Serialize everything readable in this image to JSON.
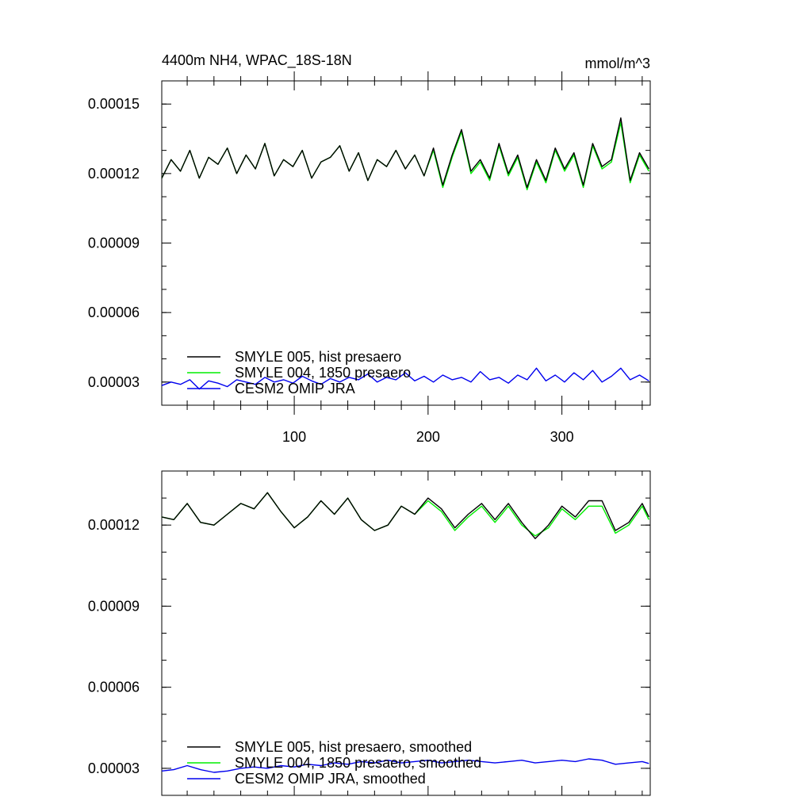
{
  "figure": {
    "title_left": "4400m NH4, WPAC_18S-18N",
    "title_right": "mmol/m^3"
  },
  "colors": {
    "hist": "#000000",
    "presaero_1850": "#00ee00",
    "omip": "#0000ee"
  },
  "chart_data": [
    {
      "type": "line",
      "x_range": [
        1,
        366
      ],
      "xticks": [
        100,
        200,
        300
      ],
      "xtick_labels": [
        "100",
        "200",
        "300"
      ],
      "ylim": [
        2e-05,
        0.00016
      ],
      "yticks": [
        3e-05,
        6e-05,
        9e-05,
        0.00012,
        0.00015
      ],
      "ytick_labels": [
        "0.00003",
        "0.00006",
        "0.00009",
        "0.00012",
        "0.00015"
      ],
      "legend_position": "bottom-left",
      "series": [
        {
          "name": "SMYLE 005, hist presaero",
          "color_key": "hist",
          "x": [
            1,
            8,
            15,
            22,
            29,
            36,
            43,
            50,
            57,
            64,
            71,
            78,
            85,
            92,
            99,
            106,
            113,
            120,
            127,
            134,
            141,
            148,
            155,
            162,
            169,
            176,
            183,
            190,
            197,
            204,
            211,
            218,
            225,
            232,
            239,
            246,
            253,
            260,
            267,
            274,
            281,
            288,
            295,
            302,
            309,
            316,
            323,
            330,
            337,
            344,
            351,
            358,
            365
          ],
          "values": [
            0.000118,
            0.000126,
            0.000121,
            0.00013,
            0.000118,
            0.000127,
            0.000124,
            0.000131,
            0.00012,
            0.000128,
            0.000122,
            0.000133,
            0.000119,
            0.000126,
            0.000123,
            0.00013,
            0.000118,
            0.000125,
            0.000127,
            0.000132,
            0.000121,
            0.000129,
            0.000117,
            0.000126,
            0.000123,
            0.00013,
            0.000122,
            0.000128,
            0.000119,
            0.000131,
            0.000115,
            0.000128,
            0.000139,
            0.000121,
            0.000126,
            0.000118,
            0.000133,
            0.00012,
            0.000128,
            0.000114,
            0.000126,
            0.000117,
            0.000131,
            0.000122,
            0.000129,
            0.000115,
            0.000133,
            0.000123,
            0.000126,
            0.000144,
            0.000117,
            0.000129,
            0.000122
          ]
        },
        {
          "name": "SMYLE 004, 1850 presaero",
          "color_key": "presaero_1850",
          "x": [
            1,
            8,
            15,
            22,
            29,
            36,
            43,
            50,
            57,
            64,
            71,
            78,
            85,
            92,
            99,
            106,
            113,
            120,
            127,
            134,
            141,
            148,
            155,
            162,
            169,
            176,
            183,
            190,
            197,
            204,
            211,
            218,
            225,
            232,
            239,
            246,
            253,
            260,
            267,
            274,
            281,
            288,
            295,
            302,
            309,
            316,
            323,
            330,
            337,
            344,
            351,
            358,
            365
          ],
          "values": [
            0.000118,
            0.000126,
            0.000121,
            0.00013,
            0.000118,
            0.000127,
            0.000124,
            0.000131,
            0.00012,
            0.000128,
            0.000122,
            0.000133,
            0.000119,
            0.000126,
            0.000123,
            0.00013,
            0.000118,
            0.000125,
            0.000127,
            0.000132,
            0.000121,
            0.000129,
            0.000117,
            0.000126,
            0.000123,
            0.00013,
            0.000122,
            0.000128,
            0.000119,
            0.00013,
            0.000114,
            0.000127,
            0.000138,
            0.00012,
            0.000125,
            0.000117,
            0.000132,
            0.000119,
            0.000127,
            0.000113,
            0.000125,
            0.000116,
            0.00013,
            0.000121,
            0.000128,
            0.000114,
            0.000132,
            0.000122,
            0.000125,
            0.000142,
            0.000116,
            0.000128,
            0.000121
          ]
        },
        {
          "name": "CESM2 OMIP JRA",
          "color_key": "omip",
          "x": [
            1,
            8,
            15,
            22,
            29,
            36,
            43,
            50,
            57,
            64,
            71,
            78,
            85,
            92,
            99,
            106,
            113,
            120,
            127,
            134,
            141,
            148,
            155,
            162,
            169,
            176,
            183,
            190,
            197,
            204,
            211,
            218,
            225,
            232,
            239,
            246,
            253,
            260,
            267,
            274,
            281,
            288,
            295,
            302,
            309,
            316,
            323,
            330,
            337,
            344,
            351,
            358,
            365
          ],
          "values": [
            2.85e-05,
            3e-05,
            2.9e-05,
            3.1e-05,
            2.7e-05,
            3.05e-05,
            2.95e-05,
            2.8e-05,
            3.1e-05,
            3e-05,
            2.9e-05,
            3.2e-05,
            3e-05,
            3.1e-05,
            2.95e-05,
            3.25e-05,
            3.05e-05,
            2.9e-05,
            3.15e-05,
            3e-05,
            3.2e-05,
            3.1e-05,
            3.35e-05,
            3e-05,
            3.2e-05,
            3.1e-05,
            3.4e-05,
            3.05e-05,
            3.25e-05,
            3e-05,
            3.3e-05,
            3.1e-05,
            3.2e-05,
            3e-05,
            3.45e-05,
            3.1e-05,
            3.2e-05,
            2.95e-05,
            3.3e-05,
            3.1e-05,
            3.6e-05,
            3.05e-05,
            3.3e-05,
            3e-05,
            3.4e-05,
            3.1e-05,
            3.5e-05,
            3e-05,
            3.25e-05,
            3.6e-05,
            3.1e-05,
            3.3e-05,
            3.05e-05
          ]
        }
      ]
    },
    {
      "type": "line",
      "x_range": [
        1,
        366
      ],
      "xticks": [
        100,
        200,
        300
      ],
      "xtick_labels": [],
      "ylim": [
        2e-05,
        0.00014
      ],
      "yticks": [
        3e-05,
        6e-05,
        9e-05,
        0.00012
      ],
      "ytick_labels": [
        "0.00003",
        "0.00006",
        "0.00009",
        "0.00012"
      ],
      "legend_position": "bottom-left",
      "series": [
        {
          "name": "SMYLE 005, hist presaero, smoothed",
          "color_key": "hist",
          "x": [
            1,
            10,
            20,
            30,
            40,
            50,
            60,
            70,
            80,
            90,
            100,
            110,
            120,
            130,
            140,
            150,
            160,
            170,
            180,
            190,
            200,
            210,
            220,
            230,
            240,
            250,
            260,
            270,
            280,
            290,
            300,
            310,
            320,
            330,
            340,
            350,
            360,
            365
          ],
          "values": [
            0.000123,
            0.000122,
            0.000128,
            0.000121,
            0.00012,
            0.000124,
            0.000128,
            0.000126,
            0.000132,
            0.000125,
            0.000119,
            0.000123,
            0.000129,
            0.000124,
            0.00013,
            0.000122,
            0.000118,
            0.00012,
            0.000127,
            0.000124,
            0.00013,
            0.000126,
            0.000119,
            0.000124,
            0.000128,
            0.000122,
            0.000128,
            0.000121,
            0.000115,
            0.00012,
            0.000127,
            0.000123,
            0.000129,
            0.000129,
            0.000118,
            0.000121,
            0.000128,
            0.000123
          ]
        },
        {
          "name": "SMYLE 004, 1850 presaero, smoothed",
          "color_key": "presaero_1850",
          "x": [
            1,
            10,
            20,
            30,
            40,
            50,
            60,
            70,
            80,
            90,
            100,
            110,
            120,
            130,
            140,
            150,
            160,
            170,
            180,
            190,
            200,
            210,
            220,
            230,
            240,
            250,
            260,
            270,
            280,
            290,
            300,
            310,
            320,
            330,
            340,
            350,
            360,
            365
          ],
          "values": [
            0.000123,
            0.000122,
            0.000128,
            0.000121,
            0.00012,
            0.000124,
            0.000128,
            0.000126,
            0.000132,
            0.000125,
            0.000119,
            0.000123,
            0.000129,
            0.000124,
            0.00013,
            0.000122,
            0.000118,
            0.00012,
            0.000127,
            0.000124,
            0.000129,
            0.000125,
            0.000118,
            0.000123,
            0.000127,
            0.000121,
            0.000127,
            0.00012,
            0.000116,
            0.000119,
            0.000126,
            0.000122,
            0.000127,
            0.000127,
            0.000117,
            0.00012,
            0.000127,
            0.000122
          ]
        },
        {
          "name": "CESM2 OMIP JRA, smoothed",
          "color_key": "omip",
          "x": [
            1,
            10,
            20,
            30,
            40,
            50,
            60,
            70,
            80,
            90,
            100,
            110,
            120,
            130,
            140,
            150,
            160,
            170,
            180,
            190,
            200,
            210,
            220,
            230,
            240,
            250,
            260,
            270,
            280,
            290,
            300,
            310,
            320,
            330,
            340,
            350,
            360,
            365
          ],
          "values": [
            2.9e-05,
            2.95e-05,
            3.1e-05,
            2.95e-05,
            2.85e-05,
            2.9e-05,
            3e-05,
            3.05e-05,
            3e-05,
            3.1e-05,
            3.05e-05,
            3.15e-05,
            3.1e-05,
            3.2e-05,
            3.15e-05,
            3.25e-05,
            3.2e-05,
            3.3e-05,
            3.2e-05,
            3.25e-05,
            3.3e-05,
            3.2e-05,
            3.25e-05,
            3.3e-05,
            3.25e-05,
            3.2e-05,
            3.25e-05,
            3.3e-05,
            3.2e-05,
            3.25e-05,
            3.3e-05,
            3.25e-05,
            3.35e-05,
            3.3e-05,
            3.15e-05,
            3.2e-05,
            3.25e-05,
            3.18e-05
          ]
        }
      ]
    }
  ]
}
